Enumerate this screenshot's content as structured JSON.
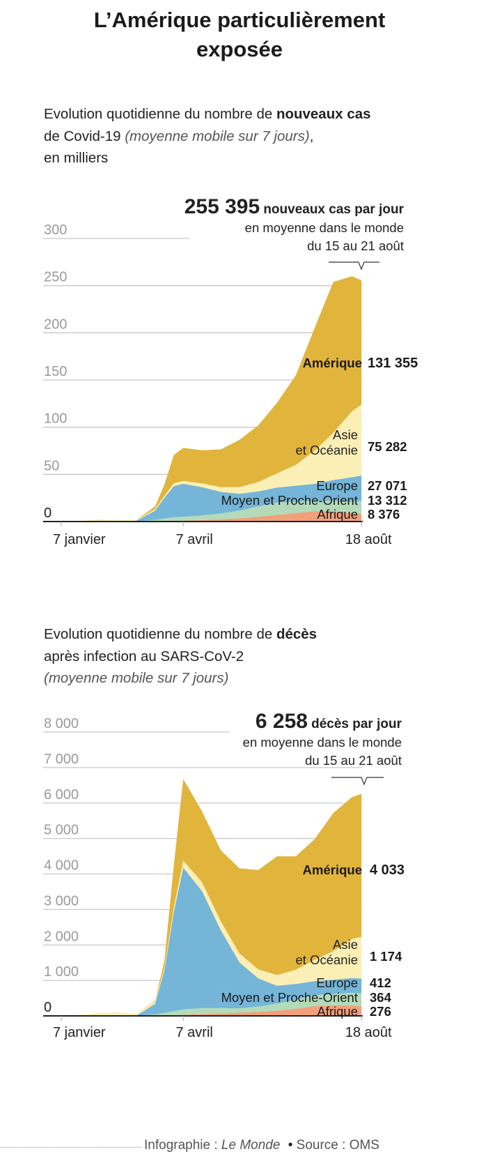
{
  "title": "L’Amérique particulièrement exposée",
  "source": {
    "credit_prefix": "Infographie : ",
    "credit_name": "Le Monde",
    "bullet": "•",
    "source": "Source : OMS"
  },
  "colors": {
    "Amérique": "#e1b43c",
    "Asie et Océanie": "#fcefb5",
    "Europe": "#74b5d8",
    "Moyen et Proche-Orient": "#b3dbb9",
    "Afrique": "#f1a07c"
  },
  "chart_data": [
    {
      "type": "area",
      "stacked": true,
      "subtitle": {
        "part1": "Evolution quotidienne du nombre de ",
        "bold": "nouveaux cas",
        "part2": "de Covid-19 ",
        "italic": "(moyenne mobile sur 7 jours)",
        "part3": ",",
        "part4": "en milliers"
      },
      "annotation": {
        "value": "255 395",
        "label": "nouveaux cas par jour",
        "line2": "en moyenne dans le monde",
        "line3": "du 15 au 21 août"
      },
      "ylim": [
        0,
        300
      ],
      "yticks": [
        "0",
        "50",
        "100",
        "150",
        "200",
        "250",
        "300"
      ],
      "xticks": [
        "7 janvier",
        "7 avril",
        "18 août"
      ],
      "grid": true,
      "x": [
        "01-07",
        "01-21",
        "02-04",
        "02-18",
        "03-03",
        "03-17",
        "03-24",
        "03-31",
        "04-07",
        "04-21",
        "05-05",
        "05-19",
        "06-02",
        "06-16",
        "06-30",
        "07-14",
        "07-28",
        "08-11",
        "08-18"
      ],
      "series": [
        {
          "name": "Afrique",
          "end_label": "8 376",
          "values": [
            0,
            0,
            0,
            0,
            0,
            0.1,
            0.3,
            0.6,
            1,
            1.5,
            2.5,
            3.5,
            5,
            7,
            9,
            11,
            11,
            9,
            8.4
          ]
        },
        {
          "name": "Moyen et Proche-Orient",
          "end_label": "13 312",
          "values": [
            0,
            0,
            0,
            0,
            0.3,
            1.5,
            3,
            4,
            4,
            5,
            6,
            8,
            11,
            13,
            12,
            11,
            11,
            12,
            13.3
          ]
        },
        {
          "name": "Europe",
          "end_label": "27 071",
          "values": [
            0,
            0,
            0,
            0,
            0.5,
            10,
            22,
            33,
            35,
            30,
            23,
            18,
            16,
            16,
            17,
            18,
            22,
            26,
            27.1
          ]
        },
        {
          "name": "Asie et Océanie",
          "label_line1": "Asie",
          "label_line2": "et Océanie",
          "end_label": "75 282",
          "values": [
            0,
            0.5,
            2.5,
            1.5,
            0.8,
            1.5,
            2,
            3,
            3,
            4,
            5,
            7,
            10,
            15,
            22,
            35,
            50,
            70,
            75.3
          ]
        },
        {
          "name": "Amérique",
          "end_label": "131 355",
          "values": [
            0,
            0,
            0,
            0,
            0,
            3,
            12,
            30,
            35,
            35,
            40,
            50,
            60,
            75,
            95,
            130,
            160,
            143,
            131.4
          ]
        }
      ]
    },
    {
      "type": "area",
      "stacked": true,
      "subtitle": {
        "part1": "Evolution quotidienne du nombre de ",
        "bold": "décès",
        "part2": "après infection au SARS-CoV-2",
        "italic": "(moyenne mobile sur 7 jours)"
      },
      "annotation": {
        "value": "6 258",
        "label": "décès par jour",
        "line2": "en moyenne dans le monde",
        "line3": "du 15 au 21 août"
      },
      "ylim": [
        0,
        8000
      ],
      "yticks": [
        "0",
        "1 000",
        "2 000",
        "3 000",
        "4 000",
        "5 000",
        "6 000",
        "7 000",
        "8 000"
      ],
      "xticks": [
        "7 janvier",
        "7 avril",
        "18 août"
      ],
      "grid": true,
      "x": [
        "01-07",
        "01-21",
        "02-04",
        "02-18",
        "03-03",
        "03-17",
        "03-24",
        "03-31",
        "04-07",
        "04-21",
        "05-05",
        "05-19",
        "06-02",
        "06-16",
        "06-30",
        "07-14",
        "07-28",
        "08-11",
        "08-18"
      ],
      "series": [
        {
          "name": "Afrique",
          "end_label": "276",
          "values": [
            0,
            0,
            0,
            0,
            0,
            0,
            5,
            15,
            30,
            50,
            70,
            90,
            110,
            150,
            200,
            280,
            300,
            290,
            276
          ]
        },
        {
          "name": "Moyen et Proche-Orient",
          "end_label": "364",
          "values": [
            0,
            0,
            0,
            0,
            5,
            40,
            80,
            120,
            150,
            170,
            150,
            120,
            150,
            200,
            250,
            300,
            320,
            360,
            364
          ]
        },
        {
          "name": "Europe",
          "end_label": "412",
          "values": [
            0,
            0,
            0,
            0,
            0,
            300,
            1200,
            2800,
            4000,
            3300,
            2200,
            1300,
            800,
            500,
            450,
            400,
            400,
            420,
            412
          ]
        },
        {
          "name": "Asie et Océanie",
          "label_line1": "Asie",
          "label_line2": "et Océanie",
          "end_label": "1 174",
          "values": [
            0,
            30,
            80,
            100,
            50,
            60,
            80,
            120,
            200,
            250,
            250,
            250,
            250,
            300,
            400,
            600,
            800,
            1100,
            1174
          ]
        },
        {
          "name": "Amérique",
          "end_label": "4 033",
          "values": [
            0,
            0,
            0,
            0,
            0,
            20,
            200,
            1200,
            2300,
            2000,
            2000,
            2400,
            2800,
            3350,
            3200,
            3400,
            3900,
            4000,
            4033
          ]
        }
      ]
    }
  ]
}
